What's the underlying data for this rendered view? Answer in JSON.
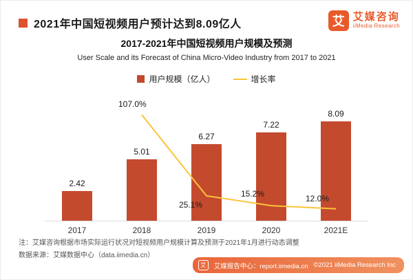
{
  "header": {
    "title": "2021年中国短视频用户预计达到8.09亿人",
    "logo": {
      "mark": "艾",
      "name_cn": "艾媒咨询",
      "name_en": "iiMedia Research"
    }
  },
  "chart": {
    "title": "2017-2021年中国短视频用户规模及预测",
    "subtitle": "User Scale and its Forecast of China Micro-Video Industry from 2017 to 2021",
    "legend": [
      {
        "label": "用户规模（亿人）",
        "type": "bar",
        "color": "#c44a2e"
      },
      {
        "label": "增长率",
        "type": "line",
        "color": "#fbc539"
      }
    ]
  },
  "chart_data": {
    "type": "bar",
    "categories": [
      "2017",
      "2018",
      "2019",
      "2020",
      "2021E"
    ],
    "series": [
      {
        "name": "用户规模（亿人）",
        "type": "bar",
        "values": [
          2.42,
          5.01,
          6.27,
          7.22,
          8.09
        ]
      },
      {
        "name": "增长率",
        "type": "line",
        "unit": "%",
        "values": [
          null,
          107.0,
          25.1,
          15.2,
          12.0
        ]
      }
    ],
    "title": "2017-2021年中国短视频用户规模及预测",
    "xlabel": "",
    "ylabel": "",
    "ylim": [
      0,
      9
    ],
    "grid": false,
    "legend_position": "top"
  },
  "notes": {
    "note1": "注：艾媒咨询根据市场实际运行状况对短视频用户规模计算及预测于2021年1月进行动态调整",
    "source": "数据来源：艾媒数据中心（data.iimedia.cn）"
  },
  "footer": {
    "report_center": "艾媒报告中心：report.iimedia.cn",
    "copyright": "©2021  iiMedia Research Inc"
  }
}
